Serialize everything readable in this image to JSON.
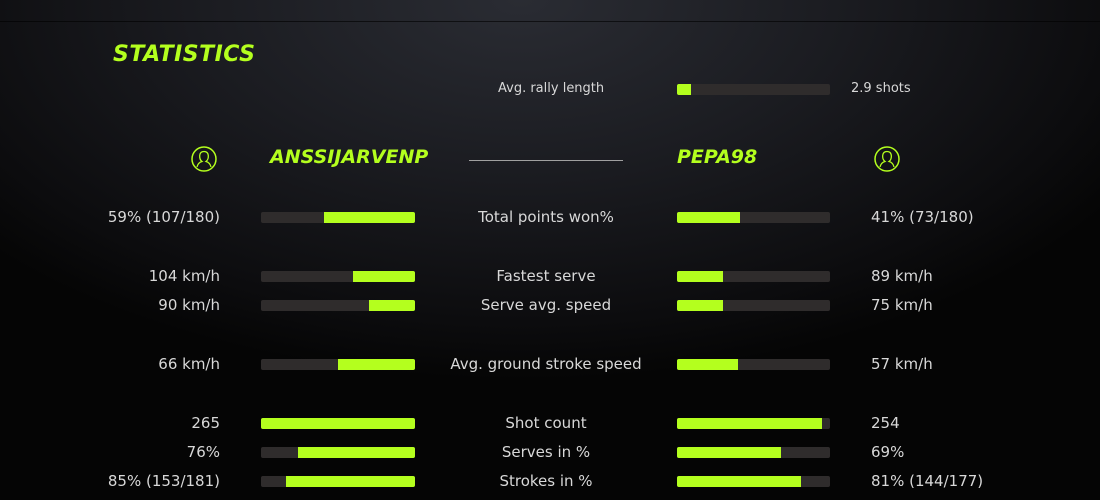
{
  "title": "STATISTICS",
  "accent": "#b4ff1e",
  "rally": {
    "label": "Avg. rally length",
    "value": "2.9 shots",
    "fraction": 0.09
  },
  "players": {
    "left": {
      "name": "ANSSIJARVENP",
      "icon": "user-icon"
    },
    "right": {
      "name": "PEPA98",
      "icon": "user-icon"
    }
  },
  "stats": [
    {
      "label": "Total points won%",
      "left": "59% (107/180)",
      "right": "41% (73/180)",
      "left_fraction": 0.59,
      "right_fraction": 0.41
    },
    {
      "label": "Fastest serve",
      "left": "104 km/h",
      "right": "89 km/h",
      "left_fraction": 0.4,
      "right_fraction": 0.3
    },
    {
      "label": "Serve avg. speed",
      "left": "90 km/h",
      "right": "75 km/h",
      "left_fraction": 0.3,
      "right_fraction": 0.3
    },
    {
      "label": "Avg. ground stroke speed",
      "left": "66 km/h",
      "right": "57 km/h",
      "left_fraction": 0.5,
      "right_fraction": 0.4
    },
    {
      "label": "Shot count",
      "left": "265",
      "right": "254",
      "left_fraction": 1.0,
      "right_fraction": 0.95
    },
    {
      "label": "Serves in %",
      "left": "76%",
      "right": "69%",
      "left_fraction": 0.76,
      "right_fraction": 0.68
    },
    {
      "label": "Strokes in %",
      "left": "85% (153/181)",
      "right": "81% (144/177)",
      "left_fraction": 0.84,
      "right_fraction": 0.81
    }
  ]
}
